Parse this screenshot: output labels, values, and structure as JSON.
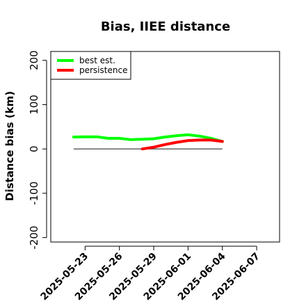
{
  "chart_data": {
    "type": "line",
    "title": "Bias, IIEE distance",
    "xlabel": "",
    "ylabel": "Distance bias (km)",
    "x_ticks": [
      "2025-05-23",
      "2025-05-26",
      "2025-05-29",
      "2025-06-01",
      "2025-06-04",
      "2025-06-07"
    ],
    "xlim": [
      "2025-05-20",
      "2025-06-09"
    ],
    "y_ticks": [
      200,
      100,
      0,
      -100,
      -200
    ],
    "ylim": [
      -210,
      220
    ],
    "grid": false,
    "legend_position": "top-left",
    "reference_line": {
      "y": 0,
      "x_start": "2025-05-22",
      "x_end": "2025-06-04",
      "color": "#555555"
    },
    "series": [
      {
        "name": "best est.",
        "color": "#00ff00",
        "x": [
          "2025-05-22",
          "2025-05-23",
          "2025-05-24",
          "2025-05-25",
          "2025-05-26",
          "2025-05-27",
          "2025-05-28",
          "2025-05-29",
          "2025-05-30",
          "2025-05-31",
          "2025-06-01",
          "2025-06-02",
          "2025-06-03",
          "2025-06-04"
        ],
        "values": [
          27,
          27.5,
          27.5,
          24,
          24,
          21,
          22,
          23,
          27,
          30,
          32,
          29,
          24,
          17
        ]
      },
      {
        "name": "persistence",
        "color": "#ff0000",
        "x": [
          "2025-05-28",
          "2025-05-29",
          "2025-05-30",
          "2025-05-31",
          "2025-06-01",
          "2025-06-02",
          "2025-06-03",
          "2025-06-04"
        ],
        "values": [
          0,
          4,
          10,
          15,
          19,
          20,
          20,
          17
        ]
      }
    ]
  }
}
